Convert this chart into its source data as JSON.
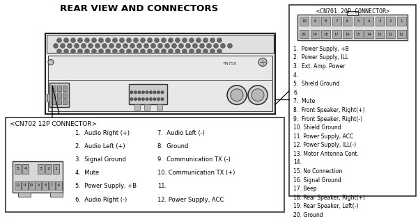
{
  "title": "REAR VIEW AND CONNECTORS",
  "bg_color": "#ffffff",
  "cn701_label": "<CN701 20P CONNECTOR>",
  "cn702_label": "<CN702 12P CONNECTOR>",
  "cn701_pins": [
    "1.  Power Supply, +B",
    "2.  Power Supply, ILL",
    "3.  Ext. Amp. Power",
    "4.",
    "5.  Shield Ground",
    "6.",
    "7.  Mute",
    "8.  Front Speaker, Right(+)",
    "9.  Front Speaker, Right(-)",
    "10. Shield Ground",
    "11. Power Supply, ACC",
    "12. Power Supply, ILL(-)",
    "13. Motor Antenna Cont.",
    "14.",
    "15. No Connection",
    "16. Signal Ground",
    "17. Beep",
    "18. Rear Speaker, Right(+)",
    "19. Rear Speaker, Left(-)",
    "20. Ground"
  ],
  "cn702_col1": [
    "1.  Audio Right (+)",
    "2.  Audio Left (+)",
    "3.  Signal Ground",
    "4.  Mute",
    "5.  Power Supply, +B",
    "6.  Audio Right (-)"
  ],
  "cn702_col2": [
    "7.  Audio Left (-)",
    "8.  Ground",
    "9.  Communication TX (-)",
    "10. Communication TX (+)",
    "11.",
    "12. Power Supply, ACC"
  ]
}
